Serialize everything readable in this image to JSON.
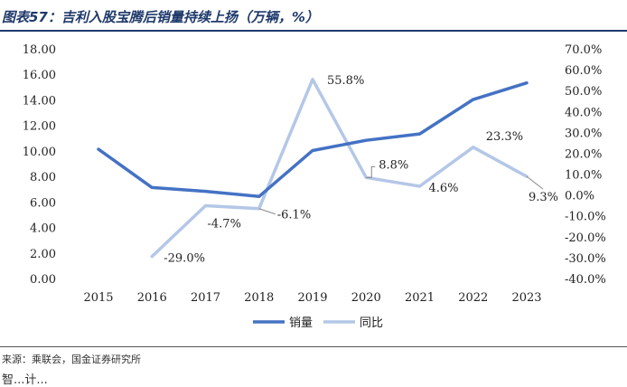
{
  "figure": {
    "title": "图表57：吉利入股宝腾后销量持续上扬（万辆，%）",
    "source": "来源：乘联会，国金证券研究所",
    "cutoff_text": "智...计..."
  },
  "chart_data": {
    "type": "line",
    "categories": [
      "2015",
      "2016",
      "2017",
      "2018",
      "2019",
      "2020",
      "2021",
      "2022",
      "2023"
    ],
    "series": [
      {
        "name": "销量",
        "axis": "left",
        "color": "#4472c4",
        "values": [
          10.2,
          7.2,
          6.9,
          6.5,
          10.1,
          10.9,
          11.4,
          14.1,
          15.4
        ]
      },
      {
        "name": "同比",
        "axis": "right",
        "color": "#b4c7e7",
        "unit": "%",
        "values": [
          null,
          -29.0,
          -4.7,
          -6.1,
          55.8,
          8.8,
          4.6,
          23.3,
          9.3
        ],
        "labels": [
          "",
          "-29.0%",
          "-4.7%",
          "-6.1%",
          "55.8%",
          "8.8%",
          "4.6%",
          "23.3%",
          "9.3%"
        ]
      }
    ],
    "y_left": {
      "range": [
        0,
        18
      ],
      "ticks": [
        "0.00",
        "2.00",
        "4.00",
        "6.00",
        "8.00",
        "10.00",
        "12.00",
        "14.00",
        "16.00",
        "18.00"
      ]
    },
    "y_right": {
      "range": [
        -40,
        70
      ],
      "ticks": [
        "-40.0%",
        "-30.0%",
        "-20.0%",
        "-10.0%",
        "0.0%",
        "10.0%",
        "20.0%",
        "30.0%",
        "40.0%",
        "50.0%",
        "60.0%",
        "70.0%"
      ]
    },
    "legend": [
      "销量",
      "同比"
    ],
    "legend_position": "bottom",
    "grid": false
  }
}
